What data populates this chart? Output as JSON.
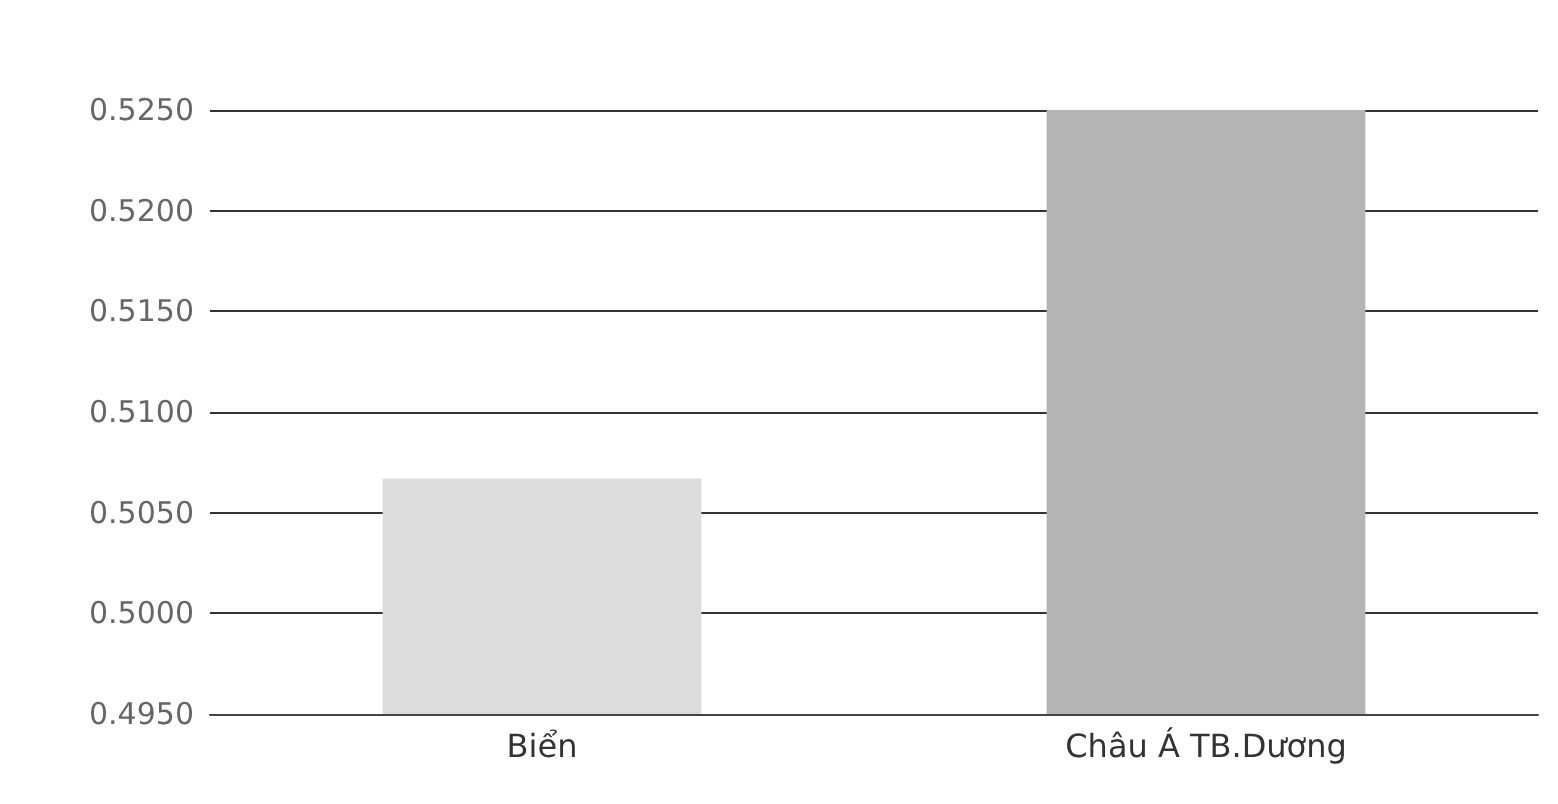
{
  "chart_data": {
    "type": "bar",
    "categories": [
      "Biển",
      "Châu Á TB.Dương"
    ],
    "values": [
      0.5067,
      0.525
    ],
    "colors": [
      "#dcdcdc",
      "#b4b4b4"
    ],
    "ylim": [
      0.495,
      0.525
    ],
    "yticks": [
      {
        "value": 0.495,
        "label": "0.4950"
      },
      {
        "value": 0.5,
        "label": "0.5000"
      },
      {
        "value": 0.505,
        "label": "0.5050"
      },
      {
        "value": 0.51,
        "label": "0.5100"
      },
      {
        "value": 0.515,
        "label": "0.5150"
      },
      {
        "value": 0.52,
        "label": "0.5200"
      },
      {
        "value": 0.525,
        "label": "0.5250"
      }
    ],
    "grid": true
  }
}
